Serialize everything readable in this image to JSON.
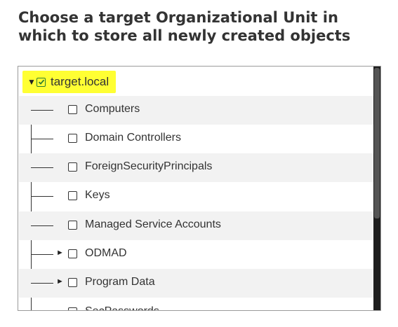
{
  "heading": "Choose a target Organizational Unit in which to store all newly created objects",
  "tree": {
    "root": {
      "label": "target.local",
      "checked": true,
      "expanded": true
    },
    "children": [
      {
        "label": "Computers",
        "has_children": false
      },
      {
        "label": "Domain Controllers",
        "has_children": false
      },
      {
        "label": "ForeignSecurityPrincipals",
        "has_children": false
      },
      {
        "label": "Keys",
        "has_children": false
      },
      {
        "label": "Managed Service Accounts",
        "has_children": false
      },
      {
        "label": "ODMAD",
        "has_children": true
      },
      {
        "label": "Program Data",
        "has_children": true
      },
      {
        "label": "SecPasswords",
        "has_children": false
      }
    ]
  },
  "colors": {
    "highlight": "#ffff33",
    "check": "#2e7d32",
    "text": "#333333"
  },
  "icons": {
    "expanded": "triangle-down-icon",
    "collapsed": "triangle-right-icon",
    "checkbox": "checkbox-icon"
  }
}
